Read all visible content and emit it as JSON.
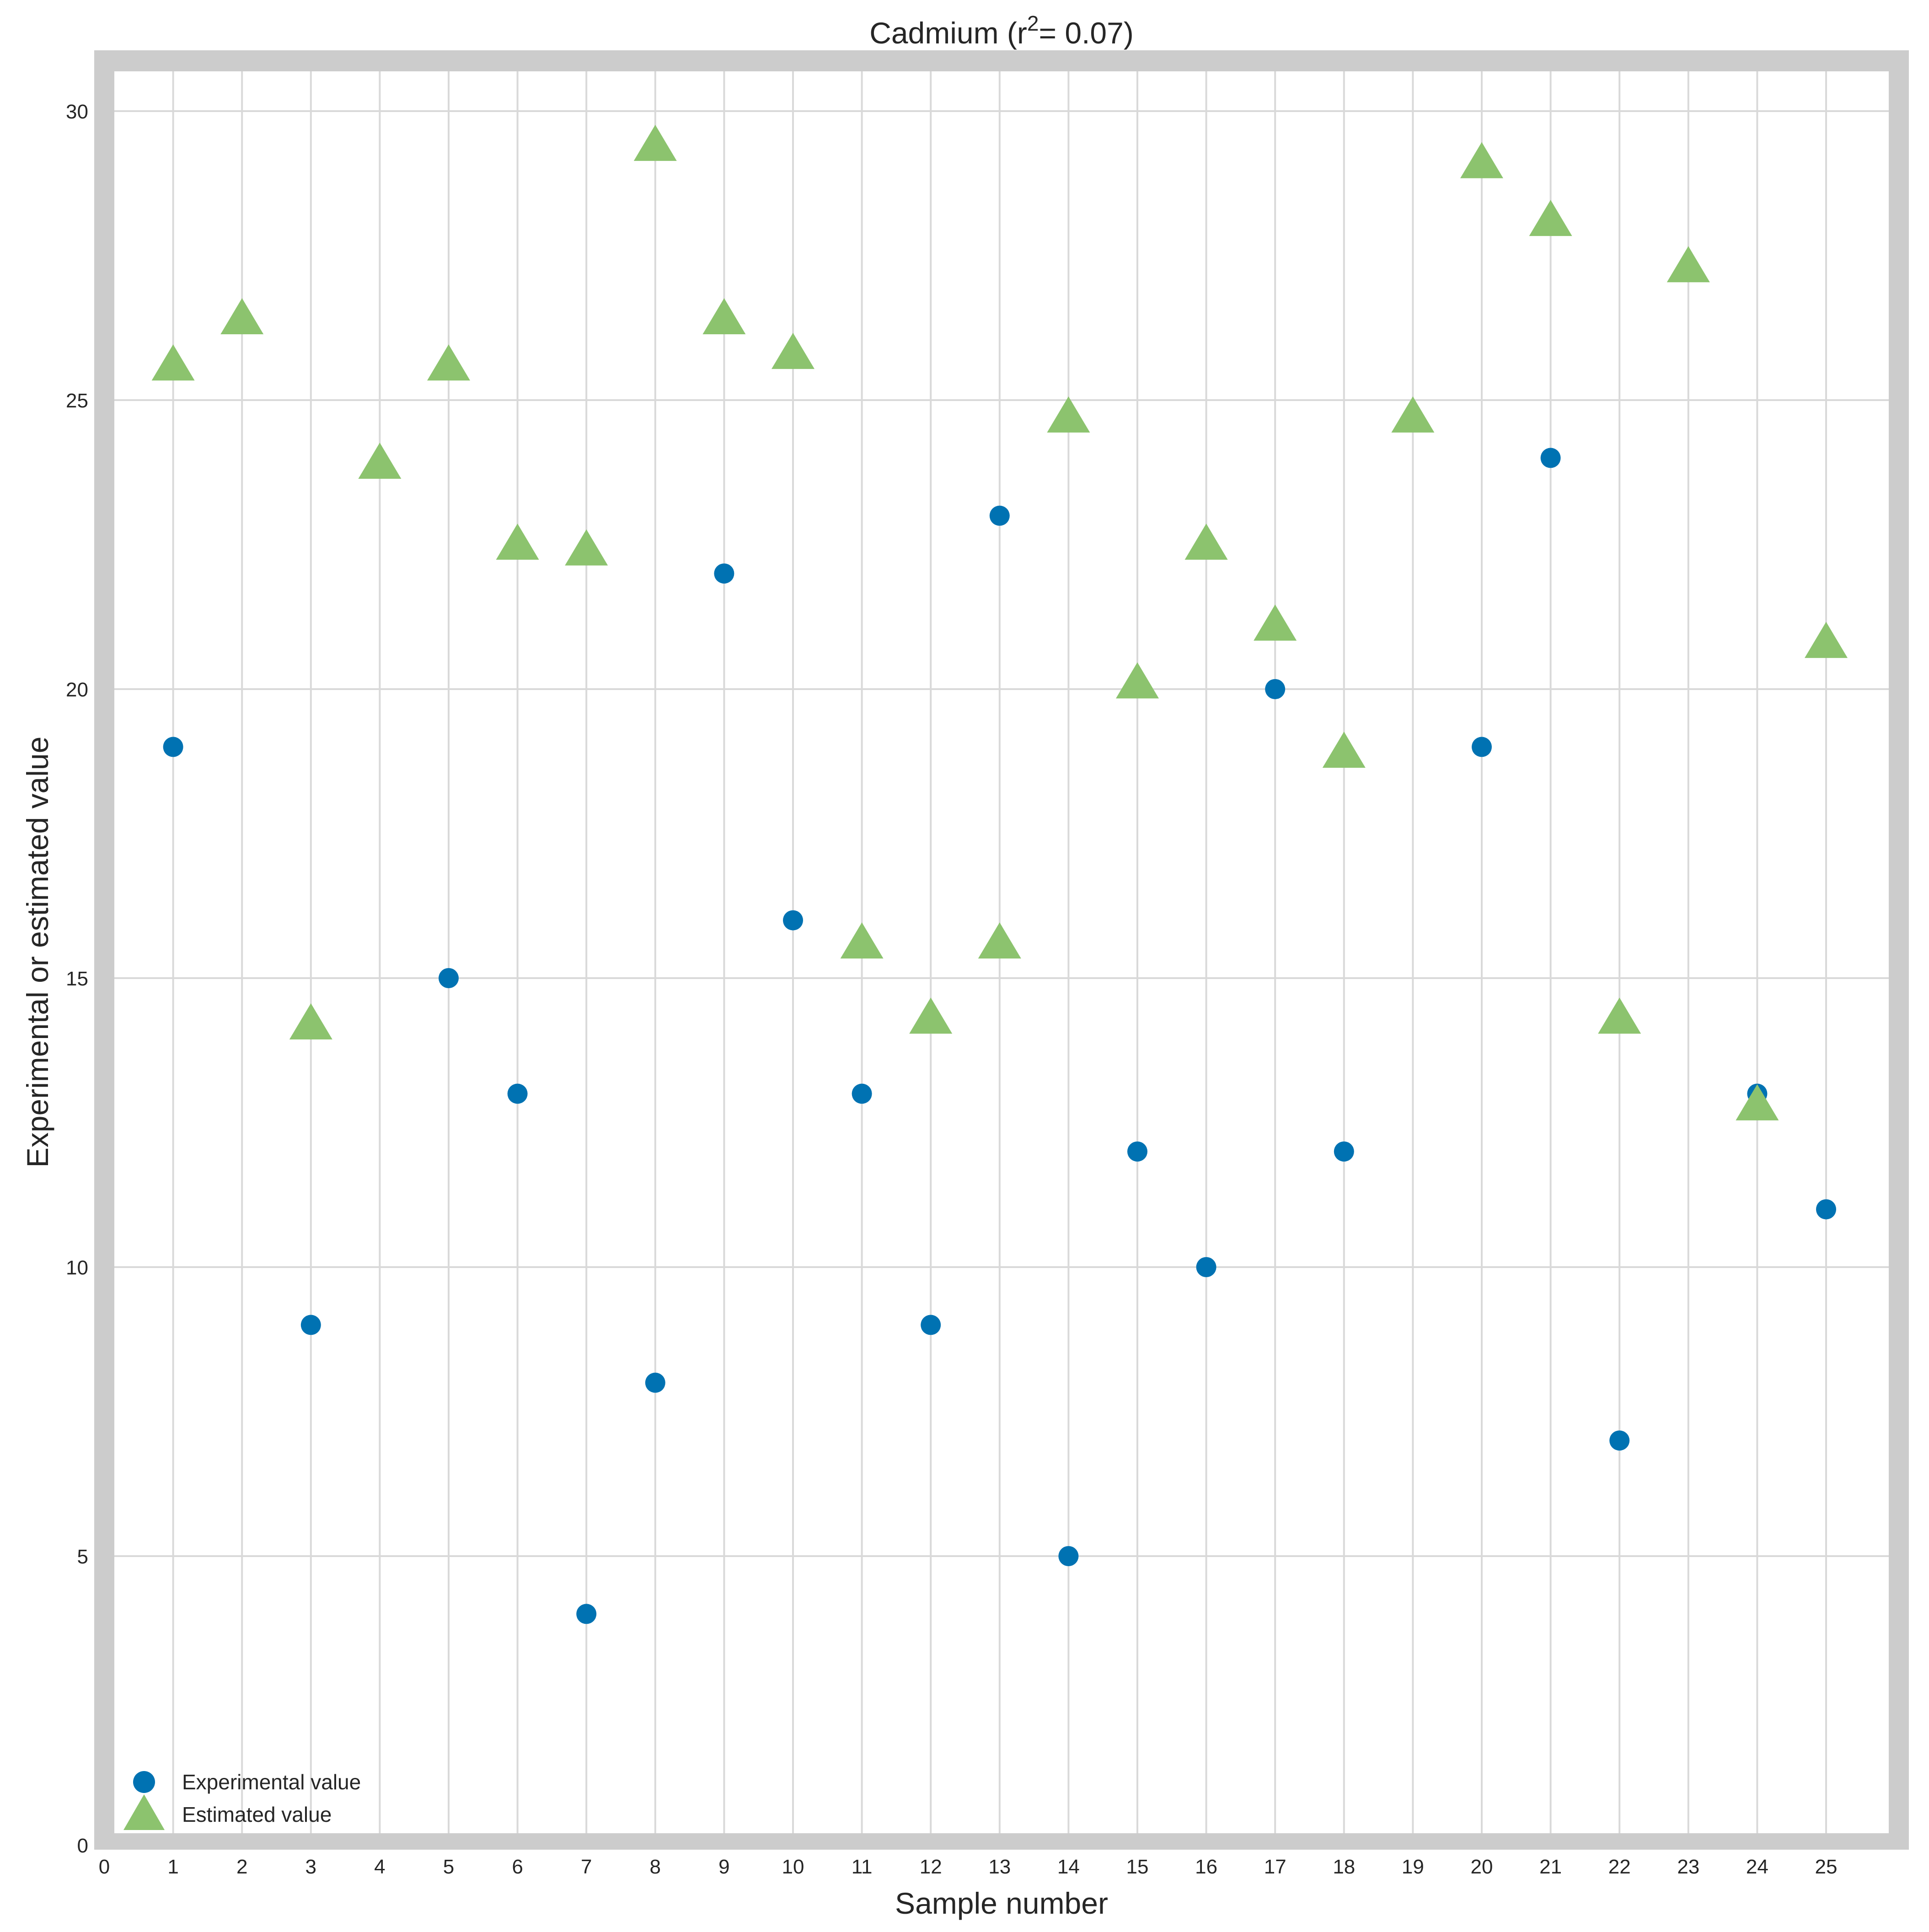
{
  "chart_data": {
    "type": "scatter",
    "title": "Cadmium (r",
    "title_sup": "2",
    "title_rest": "= 0.07)",
    "xlabel": "Sample number",
    "ylabel": "Experimental or estimated value",
    "xlim": [
      0,
      26
    ],
    "ylim": [
      0,
      30.5
    ],
    "xticks": [
      0,
      1,
      2,
      3,
      4,
      5,
      6,
      7,
      8,
      9,
      10,
      11,
      12,
      13,
      14,
      15,
      16,
      17,
      18,
      19,
      20,
      21,
      22,
      23,
      24,
      25
    ],
    "yticks": [
      0,
      5,
      10,
      15,
      20,
      25,
      30
    ],
    "grid": true,
    "legend_position": "bottom-left",
    "series": [
      {
        "name": "Experimental value",
        "marker": "circle",
        "color": "#0072b2",
        "x": [
          1,
          3,
          5,
          6,
          7,
          8,
          9,
          10,
          11,
          12,
          13,
          14,
          15,
          16,
          17,
          18,
          20,
          21,
          22,
          24,
          25
        ],
        "y": [
          19,
          9,
          15,
          13,
          4,
          8,
          22,
          16,
          13,
          9,
          23,
          5,
          12,
          10,
          20,
          12,
          19,
          24,
          7,
          13,
          11
        ]
      },
      {
        "name": "Estimated value",
        "marker": "triangle",
        "color": "#8cc36e",
        "x": [
          1,
          2,
          3,
          4,
          5,
          6,
          7,
          8,
          9,
          10,
          11,
          12,
          13,
          14,
          15,
          16,
          17,
          18,
          19,
          20,
          21,
          22,
          23,
          24,
          25
        ],
        "y": [
          25.6,
          26.4,
          14.2,
          23.9,
          25.6,
          22.5,
          22.4,
          29.4,
          26.4,
          25.8,
          15.6,
          14.3,
          15.6,
          24.7,
          20.1,
          22.5,
          21.1,
          18.9,
          24.7,
          29.1,
          28.1,
          14.3,
          27.3,
          12.8,
          20.8
        ]
      }
    ]
  }
}
